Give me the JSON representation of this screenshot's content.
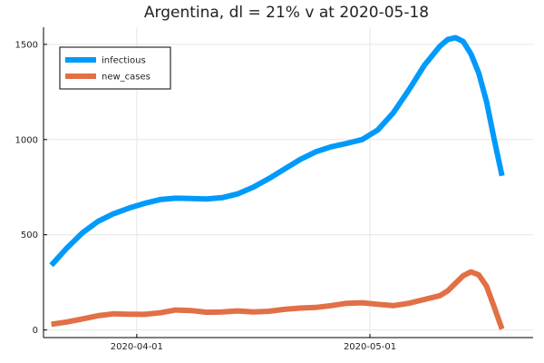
{
  "chart_data": {
    "type": "line",
    "title": "Argentina,  dl = 21% v at 2020-05-18",
    "xlabel": "",
    "ylabel": "",
    "x_range": [
      "2020-03-20",
      "2020-05-22"
    ],
    "ylim": [
      -40,
      1590
    ],
    "x_ticks": [
      {
        "date": "2020-04-01",
        "label": "2020-04-01"
      },
      {
        "date": "2020-05-01",
        "label": "2020-05-01"
      }
    ],
    "y_ticks": [
      {
        "value": 0,
        "label": "0"
      },
      {
        "value": 500,
        "label": "500"
      },
      {
        "value": 1000,
        "label": "1000"
      },
      {
        "value": 1500,
        "label": "1500"
      }
    ],
    "grid": true,
    "legend_position": "top-left",
    "series": [
      {
        "name": "infectious",
        "color": "#009AFA",
        "points": [
          [
            "2020-03-21",
            340
          ],
          [
            "2020-03-23",
            430
          ],
          [
            "2020-03-25",
            510
          ],
          [
            "2020-03-27",
            570
          ],
          [
            "2020-03-29",
            610
          ],
          [
            "2020-03-31",
            640
          ],
          [
            "2020-04-02",
            665
          ],
          [
            "2020-04-04",
            685
          ],
          [
            "2020-04-06",
            692
          ],
          [
            "2020-04-08",
            690
          ],
          [
            "2020-04-10",
            688
          ],
          [
            "2020-04-12",
            695
          ],
          [
            "2020-04-14",
            715
          ],
          [
            "2020-04-16",
            750
          ],
          [
            "2020-04-18",
            795
          ],
          [
            "2020-04-20",
            845
          ],
          [
            "2020-04-22",
            895
          ],
          [
            "2020-04-24",
            935
          ],
          [
            "2020-04-26",
            962
          ],
          [
            "2020-04-28",
            980
          ],
          [
            "2020-04-30",
            1000
          ],
          [
            "2020-05-02",
            1050
          ],
          [
            "2020-05-04",
            1140
          ],
          [
            "2020-05-06",
            1260
          ],
          [
            "2020-05-08",
            1390
          ],
          [
            "2020-05-10",
            1490
          ],
          [
            "2020-05-11",
            1525
          ],
          [
            "2020-05-12",
            1535
          ],
          [
            "2020-05-13",
            1515
          ],
          [
            "2020-05-14",
            1450
          ],
          [
            "2020-05-15",
            1350
          ],
          [
            "2020-05-16",
            1200
          ],
          [
            "2020-05-17",
            1000
          ],
          [
            "2020-05-18",
            810
          ]
        ]
      },
      {
        "name": "new_cases",
        "color": "#E26F46",
        "points": [
          [
            "2020-03-21",
            30
          ],
          [
            "2020-03-23",
            42
          ],
          [
            "2020-03-25",
            58
          ],
          [
            "2020-03-27",
            75
          ],
          [
            "2020-03-29",
            85
          ],
          [
            "2020-03-31",
            83
          ],
          [
            "2020-04-02",
            82
          ],
          [
            "2020-04-04",
            90
          ],
          [
            "2020-04-06",
            105
          ],
          [
            "2020-04-08",
            102
          ],
          [
            "2020-04-10",
            93
          ],
          [
            "2020-04-12",
            95
          ],
          [
            "2020-04-14",
            100
          ],
          [
            "2020-04-16",
            95
          ],
          [
            "2020-04-18",
            98
          ],
          [
            "2020-04-20",
            108
          ],
          [
            "2020-04-22",
            115
          ],
          [
            "2020-04-24",
            118
          ],
          [
            "2020-04-26",
            128
          ],
          [
            "2020-04-28",
            140
          ],
          [
            "2020-04-30",
            143
          ],
          [
            "2020-05-02",
            135
          ],
          [
            "2020-05-04",
            128
          ],
          [
            "2020-05-06",
            140
          ],
          [
            "2020-05-08",
            160
          ],
          [
            "2020-05-10",
            180
          ],
          [
            "2020-05-11",
            205
          ],
          [
            "2020-05-12",
            245
          ],
          [
            "2020-05-13",
            285
          ],
          [
            "2020-05-14",
            305
          ],
          [
            "2020-05-15",
            290
          ],
          [
            "2020-05-16",
            230
          ],
          [
            "2020-05-17",
            120
          ],
          [
            "2020-05-18",
            5
          ]
        ]
      }
    ]
  }
}
